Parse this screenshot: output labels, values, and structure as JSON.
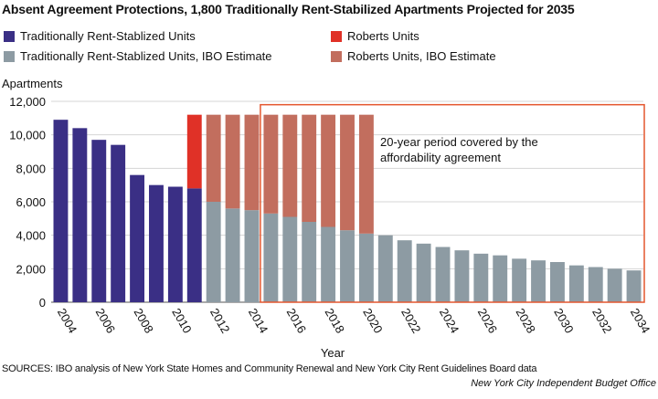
{
  "chart_data": {
    "type": "bar",
    "title": "Absent Agreement Protections, 1,800 Traditionally Rent-Stabilized Apartments Projected for 2035",
    "ylabel": "Apartments",
    "xlabel": "Year",
    "ylim": [
      0,
      12000
    ],
    "yticks": [
      "0",
      "2,000",
      "4,000",
      "6,000",
      "8,000",
      "10,000",
      "12,000"
    ],
    "ytick_values": [
      0,
      2000,
      4000,
      6000,
      8000,
      10000,
      12000
    ],
    "years": [
      2004,
      2005,
      2006,
      2007,
      2008,
      2009,
      2010,
      2011,
      2012,
      2013,
      2014,
      2015,
      2016,
      2017,
      2018,
      2019,
      2020,
      2021,
      2022,
      2023,
      2024,
      2025,
      2026,
      2027,
      2028,
      2029,
      2030,
      2031,
      2032,
      2033,
      2034
    ],
    "xtick_labels": [
      "2004",
      "2006",
      "2008",
      "2010",
      "2012",
      "2014",
      "2016",
      "2018",
      "2020",
      "2022",
      "2024",
      "2026",
      "2028",
      "2030",
      "2032",
      "2034"
    ],
    "series": [
      {
        "name": "Traditionally Rent-Stablized Units",
        "color": "#3a2f85",
        "values": [
          10900,
          10400,
          9700,
          9400,
          7600,
          7000,
          6900,
          6800,
          0,
          0,
          0,
          0,
          0,
          0,
          0,
          0,
          0,
          0,
          0,
          0,
          0,
          0,
          0,
          0,
          0,
          0,
          0,
          0,
          0,
          0,
          0
        ]
      },
      {
        "name": "Traditionally Rent-Stablized Units, IBO Estimate",
        "color": "#8d9ba3",
        "values": [
          0,
          0,
          0,
          0,
          0,
          0,
          0,
          0,
          6000,
          5600,
          5500,
          5300,
          5100,
          4800,
          4500,
          4300,
          4100,
          4000,
          3700,
          3500,
          3300,
          3100,
          2900,
          2800,
          2600,
          2500,
          2400,
          2200,
          2100,
          2000,
          1900
        ]
      },
      {
        "name": "Roberts Units",
        "color": "#e03127",
        "values": [
          0,
          0,
          0,
          0,
          0,
          0,
          0,
          4400,
          0,
          0,
          0,
          0,
          0,
          0,
          0,
          0,
          0,
          0,
          0,
          0,
          0,
          0,
          0,
          0,
          0,
          0,
          0,
          0,
          0,
          0,
          0
        ]
      },
      {
        "name": "Roberts Units, IBO Estimate",
        "color": "#c26e5e",
        "values": [
          0,
          0,
          0,
          0,
          0,
          0,
          0,
          0,
          5200,
          5600,
          5700,
          5900,
          6100,
          6400,
          6700,
          6900,
          7100,
          0,
          0,
          0,
          0,
          0,
          0,
          0,
          0,
          0,
          0,
          0,
          0,
          0,
          0
        ]
      }
    ],
    "annotation": {
      "line1": "20-year period covered by the",
      "line2": "affordability agreement",
      "start_year": 2015,
      "end_year": 2034,
      "color": "#e4572e"
    },
    "legend": {
      "left": [
        {
          "label": "Traditionally Rent-Stablized Units",
          "color": "#3a2f85"
        },
        {
          "label": "Traditionally Rent-Stablized Units, IBO Estimate",
          "color": "#8d9ba3"
        }
      ],
      "right": [
        {
          "label": "Roberts Units",
          "color": "#e03127"
        },
        {
          "label": "Roberts Units, IBO Estimate",
          "color": "#c26e5e"
        }
      ]
    },
    "grid": true
  },
  "footer": {
    "sources": "SOURCES: IBO analysis of New York State Homes and Community Renewal and New York City Rent Guidelines Board data",
    "org": "New York City Independent Budget Office"
  }
}
